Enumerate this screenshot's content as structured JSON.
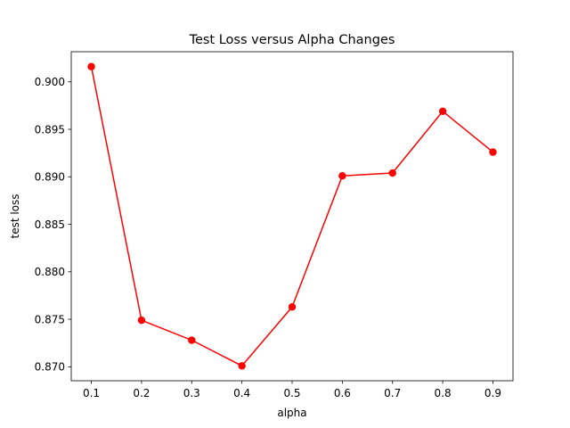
{
  "chart_data": {
    "type": "line",
    "title": "Test Loss versus Alpha Changes",
    "xlabel": "alpha",
    "ylabel": "test loss",
    "x": [
      0.1,
      0.2,
      0.3,
      0.4,
      0.5,
      0.6,
      0.7,
      0.8,
      0.9
    ],
    "series": [
      {
        "values": [
          0.9016,
          0.8749,
          0.8728,
          0.8701,
          0.8763,
          0.8901,
          0.8904,
          0.8969,
          0.8926
        ],
        "color": "#ff0000",
        "marker": "circle"
      }
    ],
    "xticks": [
      0.1,
      0.2,
      0.3,
      0.4,
      0.5,
      0.6,
      0.7,
      0.8,
      0.9
    ],
    "xtick_labels": [
      "0.1",
      "0.2",
      "0.3",
      "0.4",
      "0.5",
      "0.6",
      "0.7",
      "0.8",
      "0.9"
    ],
    "yticks": [
      0.87,
      0.875,
      0.88,
      0.885,
      0.89,
      0.895,
      0.9
    ],
    "ytick_labels": [
      "0.870",
      "0.875",
      "0.880",
      "0.885",
      "0.890",
      "0.895",
      "0.900"
    ],
    "xlim": [
      0.06,
      0.94
    ],
    "ylim": [
      0.86853,
      0.90317
    ],
    "grid": false,
    "legend": false
  }
}
